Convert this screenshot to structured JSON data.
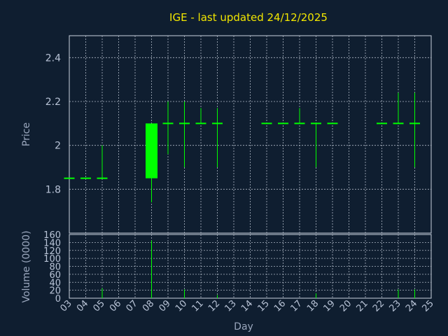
{
  "chart_data": {
    "type": "candlestick",
    "title": "IGE - last updated 24/12/2025",
    "xlabel": "Day",
    "price": {
      "ylabel": "Price",
      "ylim": [
        1.6,
        2.5
      ],
      "yticks": [
        1.8,
        2,
        2.2,
        2.4
      ],
      "ytick_labels": [
        "1.8",
        "2",
        "2.2",
        "2.4"
      ],
      "grid": true
    },
    "volume": {
      "ylabel": "Volume (0000)",
      "ylim": [
        0,
        160
      ],
      "yticks": [
        0,
        20,
        40,
        60,
        80,
        100,
        120,
        140,
        160
      ],
      "ytick_labels": [
        "0",
        "20",
        "40",
        "60",
        "80",
        "100",
        "120",
        "140",
        "160"
      ],
      "grid": true
    },
    "x_ticks": [
      "03",
      "04",
      "05",
      "06",
      "07",
      "08",
      "09",
      "10",
      "11",
      "12",
      "13",
      "14",
      "15",
      "16",
      "17",
      "18",
      "19",
      "20",
      "21",
      "22",
      "23",
      "24",
      "25"
    ],
    "candles": [
      {
        "day": "03",
        "open": 1.85,
        "high": 1.85,
        "low": 1.85,
        "close": 1.85,
        "volume": 0
      },
      {
        "day": "04",
        "open": 1.85,
        "high": 1.85,
        "low": 1.85,
        "close": 1.85,
        "volume": 0
      },
      {
        "day": "05",
        "open": 1.85,
        "high": 2.0,
        "low": 1.85,
        "close": 1.85,
        "volume": 25
      },
      {
        "day": "08",
        "open": 1.85,
        "high": 2.1,
        "low": 1.74,
        "close": 2.1,
        "volume": 145
      },
      {
        "day": "09",
        "open": 2.1,
        "high": 2.2,
        "low": 1.96,
        "close": 2.1,
        "volume": 0
      },
      {
        "day": "10",
        "open": 2.1,
        "high": 2.2,
        "low": 1.9,
        "close": 2.1,
        "volume": 22
      },
      {
        "day": "11",
        "open": 2.1,
        "high": 2.17,
        "low": 2.1,
        "close": 2.1,
        "volume": 0
      },
      {
        "day": "12",
        "open": 2.1,
        "high": 2.17,
        "low": 1.9,
        "close": 2.1,
        "volume": 8
      },
      {
        "day": "15",
        "open": 2.1,
        "high": 2.1,
        "low": 2.1,
        "close": 2.1,
        "volume": 0
      },
      {
        "day": "16",
        "open": 2.1,
        "high": 2.1,
        "low": 2.1,
        "close": 2.1,
        "volume": 0
      },
      {
        "day": "17",
        "open": 2.1,
        "high": 2.17,
        "low": 2.1,
        "close": 2.1,
        "volume": 0
      },
      {
        "day": "18",
        "open": 2.1,
        "high": 2.1,
        "low": 1.9,
        "close": 2.1,
        "volume": 12
      },
      {
        "day": "19",
        "open": 2.1,
        "high": 2.1,
        "low": 2.1,
        "close": 2.1,
        "volume": 0
      },
      {
        "day": "22",
        "open": 2.1,
        "high": 2.1,
        "low": 2.1,
        "close": 2.1,
        "volume": 0
      },
      {
        "day": "23",
        "open": 2.1,
        "high": 2.24,
        "low": 2.1,
        "close": 2.1,
        "volume": 22
      },
      {
        "day": "24",
        "open": 2.1,
        "high": 2.24,
        "low": 1.9,
        "close": 2.1,
        "volume": 22
      }
    ],
    "colors": {
      "background": "#0f1e30",
      "candle": "#00ff00",
      "grid": "#c9d1de",
      "title": "#f2e600",
      "text": "#b8c3d6"
    }
  }
}
